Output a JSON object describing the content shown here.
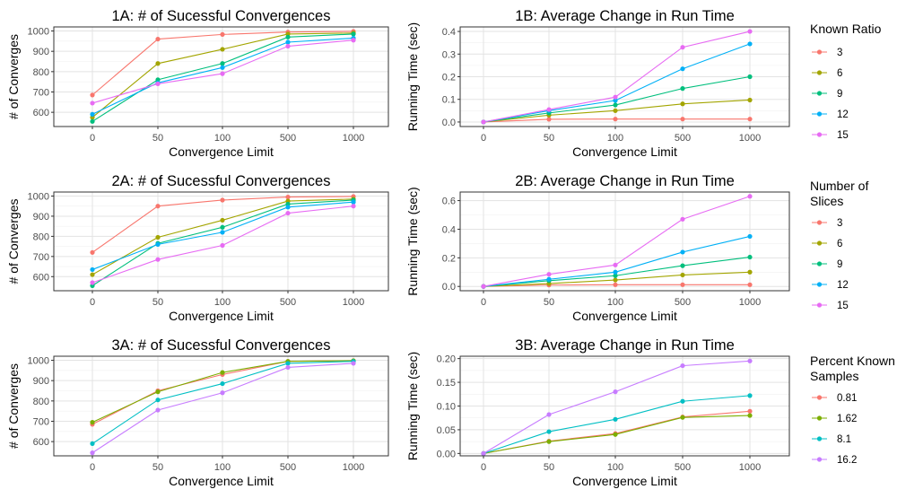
{
  "x_categories": [
    "0",
    "50",
    "100",
    "500",
    "1000"
  ],
  "series_colors": {
    "4": [
      "#F8766D",
      "#7CAE00",
      "#00BFC4",
      "#C77CFF"
    ],
    "5": [
      "#F8766D",
      "#A3A500",
      "#00BF7D",
      "#00B0F6",
      "#E76BF3"
    ]
  },
  "chart_data": [
    {
      "id": "1A",
      "type": "line",
      "row": 0,
      "col": 0,
      "title": "1A: # of Sucessful Convergences",
      "xlabel": "Convergence Limit",
      "ylabel": "# of Converges",
      "ylim": [
        530,
        1020
      ],
      "yticks": [
        600,
        700,
        800,
        900,
        1000
      ],
      "grid": true,
      "categories": [
        "0",
        "50",
        "100",
        "500",
        "1000"
      ],
      "series": [
        {
          "name": "3",
          "values": [
            685,
            960,
            983,
            995,
            998
          ]
        },
        {
          "name": "6",
          "values": [
            575,
            840,
            910,
            985,
            990
          ]
        },
        {
          "name": "9",
          "values": [
            555,
            760,
            840,
            970,
            985
          ]
        },
        {
          "name": "12",
          "values": [
            590,
            745,
            820,
            945,
            965
          ]
        },
        {
          "name": "15",
          "values": [
            645,
            740,
            790,
            925,
            955
          ]
        }
      ]
    },
    {
      "id": "1B",
      "type": "line",
      "row": 0,
      "col": 1,
      "title": "1B: Average Change in Run Time",
      "xlabel": "Convergence Limit",
      "ylabel": "Running Time (sec)",
      "ylim": [
        -0.02,
        0.42
      ],
      "yticks": [
        0.0,
        0.1,
        0.2,
        0.3,
        0.4
      ],
      "ytick_labels": [
        "0.0",
        "0.1",
        "0.2",
        "0.3",
        "0.4"
      ],
      "grid": true,
      "categories": [
        "0",
        "50",
        "100",
        "500",
        "1000"
      ],
      "series": [
        {
          "name": "3",
          "values": [
            0,
            0.012,
            0.013,
            0.013,
            0.013
          ]
        },
        {
          "name": "6",
          "values": [
            0,
            0.03,
            0.05,
            0.08,
            0.097
          ]
        },
        {
          "name": "9",
          "values": [
            0,
            0.04,
            0.075,
            0.148,
            0.2
          ]
        },
        {
          "name": "12",
          "values": [
            0,
            0.05,
            0.095,
            0.235,
            0.345
          ]
        },
        {
          "name": "15",
          "values": [
            0,
            0.055,
            0.11,
            0.33,
            0.4
          ]
        }
      ]
    },
    {
      "id": "2A",
      "type": "line",
      "row": 1,
      "col": 0,
      "title": "2A: # of Sucessful Convergences",
      "xlabel": "Convergence Limit",
      "ylabel": "# of Converges",
      "ylim": [
        530,
        1020
      ],
      "yticks": [
        600,
        700,
        800,
        900,
        1000
      ],
      "grid": true,
      "categories": [
        "0",
        "50",
        "100",
        "500",
        "1000"
      ],
      "series": [
        {
          "name": "3",
          "values": [
            720,
            950,
            980,
            995,
            998
          ]
        },
        {
          "name": "6",
          "values": [
            610,
            795,
            880,
            975,
            985
          ]
        },
        {
          "name": "9",
          "values": [
            555,
            765,
            845,
            960,
            980
          ]
        },
        {
          "name": "12",
          "values": [
            635,
            760,
            820,
            945,
            970
          ]
        },
        {
          "name": "15",
          "values": [
            570,
            685,
            755,
            915,
            950
          ]
        }
      ]
    },
    {
      "id": "2B",
      "type": "line",
      "row": 1,
      "col": 1,
      "title": "2B: Average Change in Run Time",
      "xlabel": "Convergence Limit",
      "ylabel": "Running Time (sec)",
      "ylim": [
        -0.03,
        0.66
      ],
      "yticks": [
        0.0,
        0.2,
        0.4,
        0.6
      ],
      "ytick_labels": [
        "0.0",
        "0.2",
        "0.4",
        "0.6"
      ],
      "grid": true,
      "categories": [
        "0",
        "50",
        "100",
        "500",
        "1000"
      ],
      "series": [
        {
          "name": "3",
          "values": [
            0,
            0.01,
            0.012,
            0.012,
            0.012
          ]
        },
        {
          "name": "6",
          "values": [
            0,
            0.02,
            0.045,
            0.08,
            0.1
          ]
        },
        {
          "name": "9",
          "values": [
            0,
            0.04,
            0.075,
            0.145,
            0.205
          ]
        },
        {
          "name": "12",
          "values": [
            0,
            0.05,
            0.1,
            0.24,
            0.35
          ]
        },
        {
          "name": "15",
          "values": [
            0,
            0.085,
            0.15,
            0.47,
            0.63
          ]
        }
      ]
    },
    {
      "id": "3A",
      "type": "line",
      "row": 2,
      "col": 0,
      "title": "3A: # of Sucessful Convergences",
      "xlabel": "Convergence Limit",
      "ylabel": "# of Converges",
      "ylim": [
        530,
        1020
      ],
      "yticks": [
        600,
        700,
        800,
        900,
        1000
      ],
      "grid": true,
      "categories": [
        "0",
        "50",
        "100",
        "500",
        "1000"
      ],
      "series": [
        {
          "name": "0.81",
          "values": [
            685,
            850,
            930,
            995,
            998
          ]
        },
        {
          "name": "1.62",
          "values": [
            695,
            845,
            940,
            995,
            998
          ]
        },
        {
          "name": "8.1",
          "values": [
            590,
            805,
            885,
            985,
            995
          ]
        },
        {
          "name": "16.2",
          "values": [
            545,
            755,
            840,
            965,
            985
          ]
        }
      ]
    },
    {
      "id": "3B",
      "type": "line",
      "row": 2,
      "col": 1,
      "title": "3B: Average Change in Run Time",
      "xlabel": "Convergence Limit",
      "ylabel": "Running Time (sec)",
      "ylim": [
        -0.005,
        0.205
      ],
      "yticks": [
        0.0,
        0.05,
        0.1,
        0.15,
        0.2
      ],
      "ytick_labels": [
        "0.00",
        "0.05",
        "0.10",
        "0.15",
        "0.20"
      ],
      "grid": true,
      "categories": [
        "0",
        "50",
        "100",
        "500",
        "1000"
      ],
      "series": [
        {
          "name": "0.81",
          "values": [
            0,
            0.026,
            0.042,
            0.077,
            0.089
          ]
        },
        {
          "name": "1.62",
          "values": [
            0,
            0.025,
            0.04,
            0.076,
            0.08
          ]
        },
        {
          "name": "8.1",
          "values": [
            0,
            0.046,
            0.072,
            0.11,
            0.122
          ]
        },
        {
          "name": "16.2",
          "values": [
            0,
            0.082,
            0.13,
            0.185,
            0.195
          ]
        }
      ]
    }
  ],
  "legends": [
    {
      "row": 0,
      "title": [
        "Known Ratio"
      ],
      "items": [
        "3",
        "6",
        "9",
        "12",
        "15"
      ]
    },
    {
      "row": 1,
      "title": [
        "Number of",
        "Slices"
      ],
      "items": [
        "3",
        "6",
        "9",
        "12",
        "15"
      ]
    },
    {
      "row": 2,
      "title": [
        "Percent Known",
        "Samples"
      ],
      "items": [
        "0.81",
        "1.62",
        "8.1",
        "16.2"
      ]
    }
  ]
}
